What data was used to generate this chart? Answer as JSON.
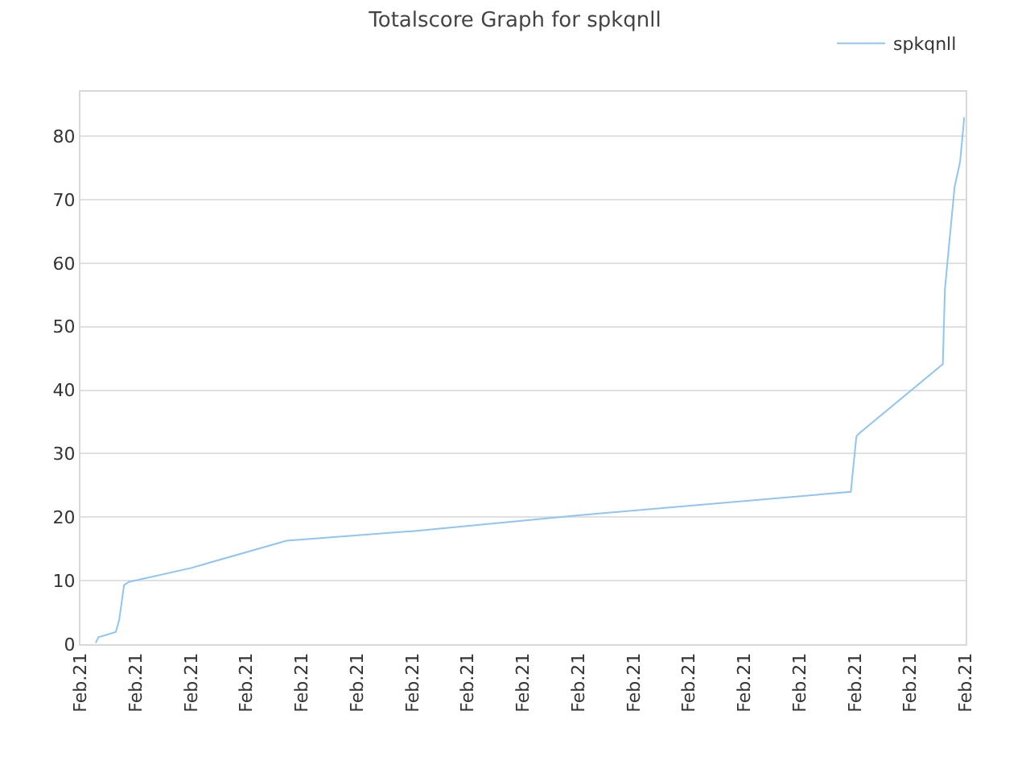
{
  "chart_data": {
    "type": "line",
    "title": "Totalscore Graph for spkqnll",
    "x": [
      "--02-21T00:22",
      "--02-21T00:26",
      "--02-21T00:51",
      "--02-21T00:56",
      "--02-21T01:03",
      "--02-21T01:10",
      "--02-21T02:40",
      "--02-21T04:58",
      "--02-21T08:00",
      "--02-21T12:00",
      "--02-21T18:34",
      "--02-21T18:42",
      "--02-21T18:46",
      "--02-21T20:47",
      "--02-21T20:50",
      "--02-21T20:57",
      "--02-21T21:04",
      "--02-21T21:12",
      "--02-21T21:18"
    ],
    "series": [
      {
        "name": "spkqnll",
        "color": "#90c4f2",
        "values": [
          0.2,
          1.1,
          1.9,
          3.8,
          9.3,
          9.8,
          12.0,
          16.3,
          17.8,
          20.3,
          24.0,
          32.7,
          33.2,
          44.1,
          55.8,
          64,
          72,
          76,
          83
        ]
      }
    ],
    "xlim": [
      "--02-21T00:00",
      "--02-21T21:20"
    ],
    "xticks": [
      {
        "value": "--02-21T00:00",
        "label": "Feb.21"
      },
      {
        "value": "--02-21T01:20",
        "label": "Feb.21"
      },
      {
        "value": "--02-21T02:40",
        "label": "Feb.21"
      },
      {
        "value": "--02-21T04:00",
        "label": "Feb.21"
      },
      {
        "value": "--02-21T05:20",
        "label": "Feb.21"
      },
      {
        "value": "--02-21T06:40",
        "label": "Feb.21"
      },
      {
        "value": "--02-21T08:00",
        "label": "Feb.21"
      },
      {
        "value": "--02-21T09:20",
        "label": "Feb.21"
      },
      {
        "value": "--02-21T10:40",
        "label": "Feb.21"
      },
      {
        "value": "--02-21T12:00",
        "label": "Feb.21"
      },
      {
        "value": "--02-21T13:20",
        "label": "Feb.21"
      },
      {
        "value": "--02-21T14:40",
        "label": "Feb.21"
      },
      {
        "value": "--02-21T16:00",
        "label": "Feb.21"
      },
      {
        "value": "--02-21T17:20",
        "label": "Feb.21"
      },
      {
        "value": "--02-21T18:40",
        "label": "Feb.21"
      },
      {
        "value": "--02-21T20:00",
        "label": "Feb.21"
      },
      {
        "value": "--02-21T21:20",
        "label": "Feb.21"
      }
    ],
    "ylim": [
      0,
      87
    ],
    "yticks": [
      0,
      10,
      20,
      30,
      40,
      50,
      60,
      70,
      80
    ],
    "grid": "y",
    "legend": "top right",
    "marker": "none",
    "line_style": "solid"
  }
}
